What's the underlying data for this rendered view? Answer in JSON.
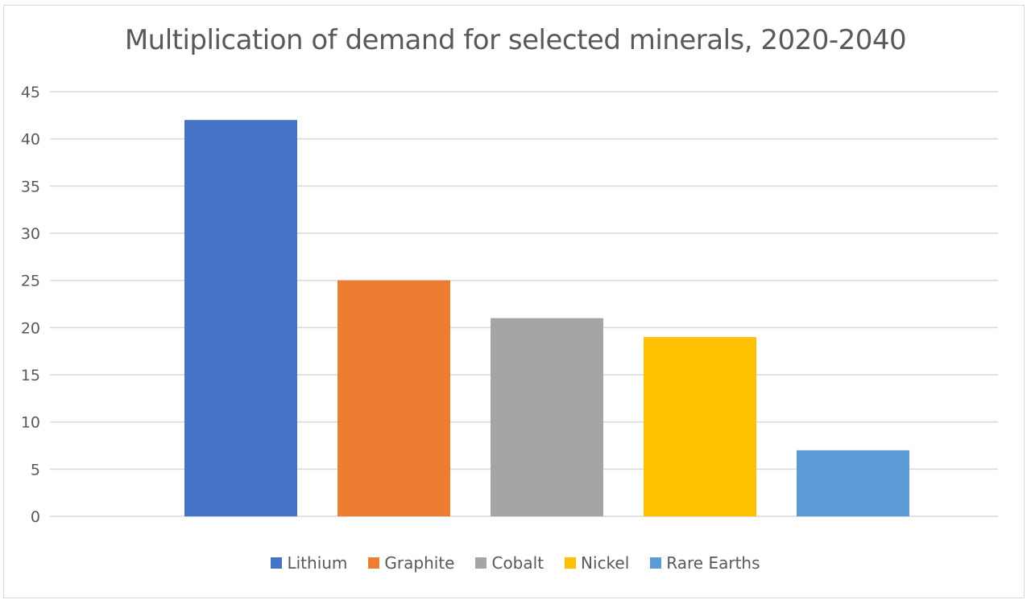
{
  "chart_data": {
    "type": "bar",
    "title": "Multiplication of demand for selected minerals, 2020-2040",
    "xlabel": "",
    "ylabel": "",
    "ylim": [
      0,
      45
    ],
    "yticks": [
      0,
      5,
      10,
      15,
      20,
      25,
      30,
      35,
      40,
      45
    ],
    "grid": true,
    "legend_position": "bottom",
    "series": [
      {
        "name": "Lithium",
        "value": 42,
        "color": "#4472c4"
      },
      {
        "name": "Graphite",
        "value": 25,
        "color": "#ed7d31"
      },
      {
        "name": "Cobalt",
        "value": 21,
        "color": "#a5a5a5"
      },
      {
        "name": "Nickel",
        "value": 19,
        "color": "#ffc000"
      },
      {
        "name": "Rare Earths",
        "value": 7,
        "color": "#5b9bd5"
      }
    ]
  }
}
